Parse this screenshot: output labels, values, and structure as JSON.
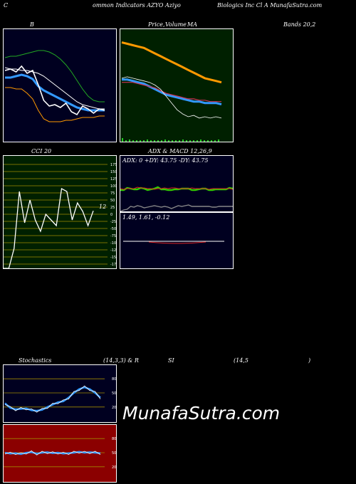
{
  "header": {
    "left": "C",
    "center": "ommon  Indicators AZYO Aziyo",
    "right": "Biologics Inc Cl A MunafaSutra.com"
  },
  "titles": {
    "bollinger": "B",
    "price": "Price,",
    "volume": "Volume",
    "ma": "MA",
    "bands": "Bands 20,2",
    "cci": "CCI 20",
    "adx": "ADX  & MACD 12,26,9",
    "stoch": "Stochastics",
    "stoch_params": "(14,3,3) & R",
    "si": "SI",
    "rsi_params": "(14,5",
    "close_paren": ")"
  },
  "panel_text": {
    "adx_values": "ADX: 0  +DY: 43.75 -DY: 43.75",
    "macd_values": "1.49,  1.61,  -0.12",
    "cci_last": "12"
  },
  "watermark": "MunafaSutra.com",
  "colors": {
    "bg": "#000000",
    "bollinger_bg": "#000020",
    "ma_bg": "#002000",
    "cci_bg": "#002000",
    "adx_bg": "#000020",
    "stoch_bg": "#000020",
    "rsi_bg": "#8b0000",
    "orange": "#ff9900",
    "blue": "#3399ff",
    "green": "#33cc00"
  },
  "chart_data": [
    {
      "type": "line",
      "title": "B",
      "series": [
        {
          "values": [
            81,
            81,
            82,
            83,
            82,
            80,
            75,
            72,
            70,
            68,
            66,
            64,
            62,
            60,
            59,
            58,
            58,
            58,
            58
          ]
        },
        {
          "values": [
            88,
            87,
            87,
            86,
            86,
            85,
            84,
            82,
            79,
            76,
            73,
            70,
            67,
            64,
            62,
            61,
            60,
            59,
            59
          ]
        },
        {
          "values": [
            95,
            96,
            96,
            97,
            98,
            99,
            100,
            100,
            99,
            97,
            94,
            90,
            85,
            79,
            73,
            68,
            65,
            64,
            64
          ]
        },
        {
          "values": [
            74,
            74,
            73,
            73,
            70,
            66,
            58,
            52,
            50,
            50,
            50,
            51,
            51,
            52,
            53,
            53,
            53,
            54,
            54
          ]
        },
        {
          "values": [
            86,
            87,
            85,
            89,
            84,
            86,
            76,
            65,
            61,
            62,
            60,
            63,
            57,
            55,
            61,
            59,
            56,
            59,
            58
          ]
        }
      ]
    },
    {
      "type": "line",
      "title": "Price, Volume MA",
      "series": [
        {
          "values": [
            99,
            98,
            97,
            96,
            95,
            93,
            91,
            89,
            87,
            85,
            83,
            81,
            79,
            77,
            75,
            73,
            72,
            71,
            70
          ]
        },
        {
          "values": [
            72,
            72,
            71,
            70,
            69,
            67,
            65,
            63,
            61,
            60,
            59,
            58,
            57,
            56,
            56,
            55,
            55,
            55,
            54
          ]
        },
        {
          "values": [
            70,
            70,
            70,
            69,
            68,
            67,
            66,
            64,
            62,
            61,
            60,
            59,
            58,
            58,
            57,
            57,
            56,
            56,
            56
          ]
        },
        {
          "values": [
            73,
            74,
            73,
            72,
            71,
            70,
            68,
            65,
            60,
            55,
            50,
            47,
            45,
            46,
            44,
            45,
            44,
            45,
            44
          ]
        }
      ]
    },
    {
      "type": "line",
      "title": "CCI 20",
      "ylim": [
        -175,
        175
      ],
      "ticks": [
        "175",
        "150",
        "125",
        "100",
        "75",
        "50",
        "25",
        "0",
        "-25",
        "-50",
        "-75",
        "-100",
        "-125",
        "-150",
        "-175"
      ],
      "values": [
        -190,
        -190,
        -120,
        80,
        -30,
        50,
        -20,
        -60,
        0,
        -20,
        -40,
        90,
        80,
        -20,
        40,
        10,
        -40,
        12
      ]
    },
    {
      "type": "line",
      "title": "ADX & MACD 12,26,9",
      "adx": 0,
      "plus_dy": 43.75,
      "minus_dy": 43.75,
      "macd": 1.49,
      "signal": 1.61,
      "histogram": -0.12
    },
    {
      "type": "line",
      "title": "Stochastics (14,3,3)",
      "ylim": [
        0,
        100
      ],
      "ticks": [
        "80",
        "50",
        "20"
      ],
      "values": [
        28,
        18,
        15,
        16,
        17,
        13,
        12,
        14,
        20,
        25,
        30,
        32,
        40,
        50,
        58,
        62,
        58,
        50,
        40
      ]
    },
    {
      "type": "line",
      "title": "RSI (14,5)",
      "ylim": [
        0,
        100
      ],
      "ticks": [
        "80",
        "50",
        "20"
      ],
      "values": [
        50,
        48,
        49,
        47,
        50,
        51,
        48,
        50,
        51,
        49,
        50,
        48,
        49,
        50,
        52,
        50,
        51,
        50,
        49
      ]
    }
  ]
}
